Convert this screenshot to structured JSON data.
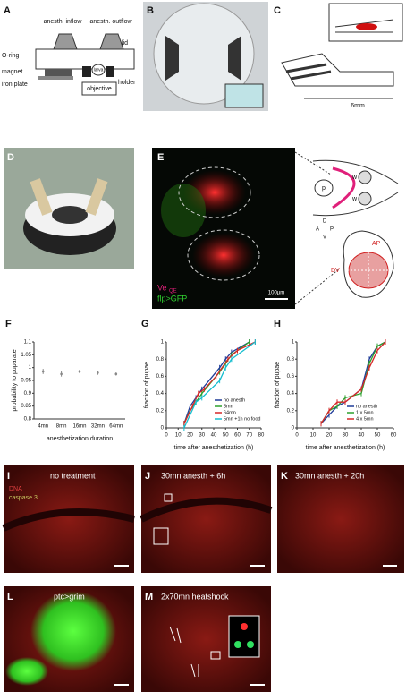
{
  "panels": {
    "A": {
      "letter": "A",
      "inflow": "anesth. inflow",
      "outflow": "anesth. outflow",
      "oring": "O-ring",
      "lid": "lid",
      "magnet": "magnet",
      "iron": "iron plate",
      "larva": "larva",
      "holder": "holder",
      "objective": "objective"
    },
    "B": {
      "letter": "B"
    },
    "C": {
      "letter": "C",
      "scale": "6mm"
    },
    "D": {
      "letter": "D"
    },
    "E": {
      "letter": "E",
      "ve": "Ve",
      "ve_sub": "QE",
      "flp": "flp>GFP",
      "scale": "100µm",
      "p": "p",
      "w1": "w",
      "w2": "w",
      "d": "D",
      "a": "A",
      "pp": "P",
      "v": "V",
      "ap": "AP",
      "dv": "DV"
    },
    "F": {
      "letter": "F"
    },
    "G": {
      "letter": "G"
    },
    "H": {
      "letter": "H"
    },
    "I": {
      "letter": "I",
      "title": "no treatment",
      "dna": "DNA",
      "casp": "caspase 3"
    },
    "J": {
      "letter": "J",
      "title": "30mn anesth + 6h"
    },
    "K": {
      "letter": "K",
      "title": "30mn anesth + 20h"
    },
    "L": {
      "letter": "L",
      "title": "ptc>grim"
    },
    "M": {
      "letter": "M",
      "title": "2x70mn heatshock"
    }
  },
  "chart_data": [
    {
      "type": "errorpoints",
      "ylabel": "probability to puparate",
      "xlabel": "anesthetization duration",
      "categories": [
        "4mn",
        "8mn",
        "16mn",
        "32mn",
        "64mn"
      ],
      "values": [
        0.985,
        0.975,
        0.985,
        0.98,
        0.975
      ],
      "errors": [
        0.01,
        0.01,
        0.007,
        0.008,
        0.006
      ],
      "color": "#888888",
      "ylim": [
        0.8,
        1.1
      ],
      "yticks": [
        0.8,
        0.85,
        0.9,
        0.95,
        1,
        1.05,
        1.1
      ]
    },
    {
      "type": "line",
      "ylabel": "fraction of pupae",
      "xlabel": "time after anesthetization (h)",
      "xlim": [
        0,
        80
      ],
      "xticks": [
        0,
        10,
        20,
        30,
        40,
        50,
        60,
        70,
        80
      ],
      "ylim": [
        0,
        1
      ],
      "yticks": [
        0,
        0.2,
        0.4,
        0.6,
        0.8,
        1
      ],
      "series": [
        {
          "name": "no anesth",
          "color": "#1f3c99",
          "x": [
            15,
            20,
            25,
            30,
            45,
            50,
            55,
            70
          ],
          "values": [
            0.05,
            0.25,
            0.35,
            0.45,
            0.7,
            0.8,
            0.88,
            1
          ]
        },
        {
          "name": "5mn",
          "color": "#2ca02c",
          "x": [
            15,
            20,
            25,
            30,
            45,
            50,
            55,
            70
          ],
          "values": [
            0.05,
            0.2,
            0.3,
            0.4,
            0.65,
            0.75,
            0.85,
            1
          ]
        },
        {
          "name": "64mn",
          "color": "#d62728",
          "x": [
            15,
            22,
            27,
            32,
            42,
            52,
            60,
            75
          ],
          "values": [
            0.05,
            0.25,
            0.4,
            0.45,
            0.6,
            0.8,
            0.9,
            1
          ]
        },
        {
          "name": "5mn +1h no food",
          "color": "#17becf",
          "x": [
            15,
            20,
            25,
            30,
            45,
            50,
            55,
            75
          ],
          "values": [
            0,
            0.15,
            0.3,
            0.35,
            0.55,
            0.7,
            0.8,
            1
          ]
        }
      ]
    },
    {
      "type": "line",
      "ylabel": "fraction of pupae",
      "xlabel": "time after anesthetization (h)",
      "xlim": [
        0,
        60
      ],
      "xticks": [
        0,
        10,
        20,
        30,
        40,
        50,
        60
      ],
      "ylim": [
        0,
        1
      ],
      "yticks": [
        0,
        0.2,
        0.4,
        0.6,
        0.8,
        1
      ],
      "series": [
        {
          "name": "no anesth",
          "color": "#1f3c99",
          "x": [
            15,
            20,
            25,
            30,
            40,
            45,
            50,
            55
          ],
          "values": [
            0.05,
            0.15,
            0.25,
            0.3,
            0.45,
            0.8,
            0.95,
            1
          ]
        },
        {
          "name": "1 x 5mn",
          "color": "#2ca02c",
          "x": [
            15,
            20,
            25,
            30,
            40,
            45,
            50,
            55
          ],
          "values": [
            0.05,
            0.2,
            0.25,
            0.35,
            0.4,
            0.75,
            0.95,
            1
          ]
        },
        {
          "name": "4 x 5mn",
          "color": "#d62728",
          "x": [
            15,
            20,
            25,
            30,
            40,
            45,
            50,
            55
          ],
          "values": [
            0.05,
            0.2,
            0.3,
            0.3,
            0.45,
            0.7,
            0.9,
            1
          ]
        }
      ]
    }
  ]
}
